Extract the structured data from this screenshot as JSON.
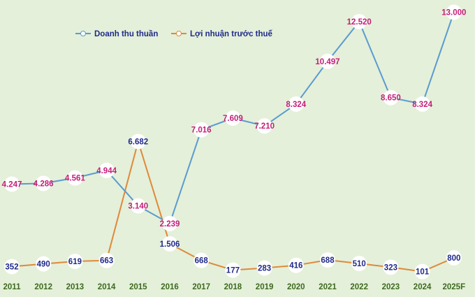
{
  "colors": {
    "background": "#e4f0d9",
    "revenue_line": "#5a9bd0",
    "profit_line": "#e0883a",
    "revenue_label": "#c41e79",
    "profit_label": "#1f2a8a",
    "axis_tick": "#3d6a1f",
    "marker_fill": "#ffffff"
  },
  "legend": {
    "position": "top-left",
    "revenue_label": "Doanh thu thuần",
    "profit_label": "Lợi nhuận trước thuế"
  },
  "chart_data": {
    "type": "line",
    "title": "",
    "xlabel": "",
    "ylabel": "",
    "grid": false,
    "categories": [
      "2011",
      "2012",
      "2013",
      "2014",
      "2015",
      "2016",
      "2017",
      "2018",
      "2019",
      "2020",
      "2021",
      "2022",
      "2023",
      "2024",
      "2025F"
    ],
    "series": [
      {
        "name": "Doanh thu thuần",
        "values": [
          4247,
          4286,
          4561,
          4944,
          3140,
          2239,
          7016,
          7609,
          7210,
          8324,
          10497,
          12520,
          8650,
          8324,
          13000
        ],
        "labels": [
          "4.247",
          "4.286",
          "4.561",
          "4.944",
          "3.140",
          "2.239",
          "7.016",
          "7.609",
          "7.210",
          "8.324",
          "10.497",
          "12.520",
          "8.650",
          "8.324",
          "13.000"
        ]
      },
      {
        "name": "Lợi nhuận trước thuế",
        "values": [
          352,
          490,
          619,
          663,
          6682,
          1506,
          668,
          177,
          283,
          416,
          688,
          510,
          323,
          101,
          800
        ],
        "labels": [
          "352",
          "490",
          "619",
          "663",
          "6.682",
          "1.506",
          "668",
          "177",
          "283",
          "416",
          "688",
          "510",
          "323",
          "101",
          "800"
        ]
      }
    ]
  }
}
